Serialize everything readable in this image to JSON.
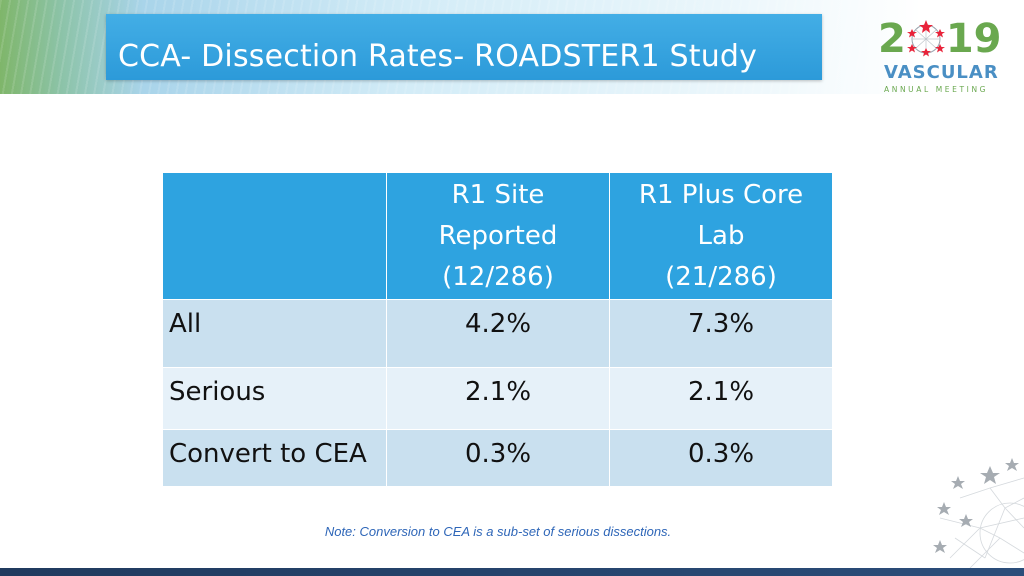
{
  "slide": {
    "title": "CCA- Dissection Rates- ROADSTER1 Study",
    "note": "Note: Conversion to CEA is a sub-set of serious dissections."
  },
  "logo": {
    "year_left": "2",
    "year_right": "19",
    "name": "VASCULAR",
    "subtitle": "ANNUAL MEETING",
    "colors": {
      "green": "#6aa84f",
      "blue": "#4a8fc4",
      "star_red": "#e8233a"
    }
  },
  "table": {
    "header": {
      "col0": "",
      "col1": [
        "R1 Site",
        "Reported",
        "(12/286)"
      ],
      "col2": [
        "R1 Plus Core",
        "Lab",
        "(21/286)"
      ]
    },
    "rows": [
      {
        "label": "All",
        "site": "4.2%",
        "core": "7.3%"
      },
      {
        "label": "Serious",
        "site": "2.1%",
        "core": "2.1%"
      },
      {
        "label": "Convert to CEA",
        "site": "0.3%",
        "core": "0.3%"
      }
    ],
    "colors": {
      "header": "#2ea3e0",
      "row_dark": "#c9e0ef",
      "row_light": "#e6f1f9"
    }
  },
  "colors": {
    "title_box": "#2c9ad9",
    "note": "#2e66b8",
    "bottom_bar": "#203a5e"
  }
}
